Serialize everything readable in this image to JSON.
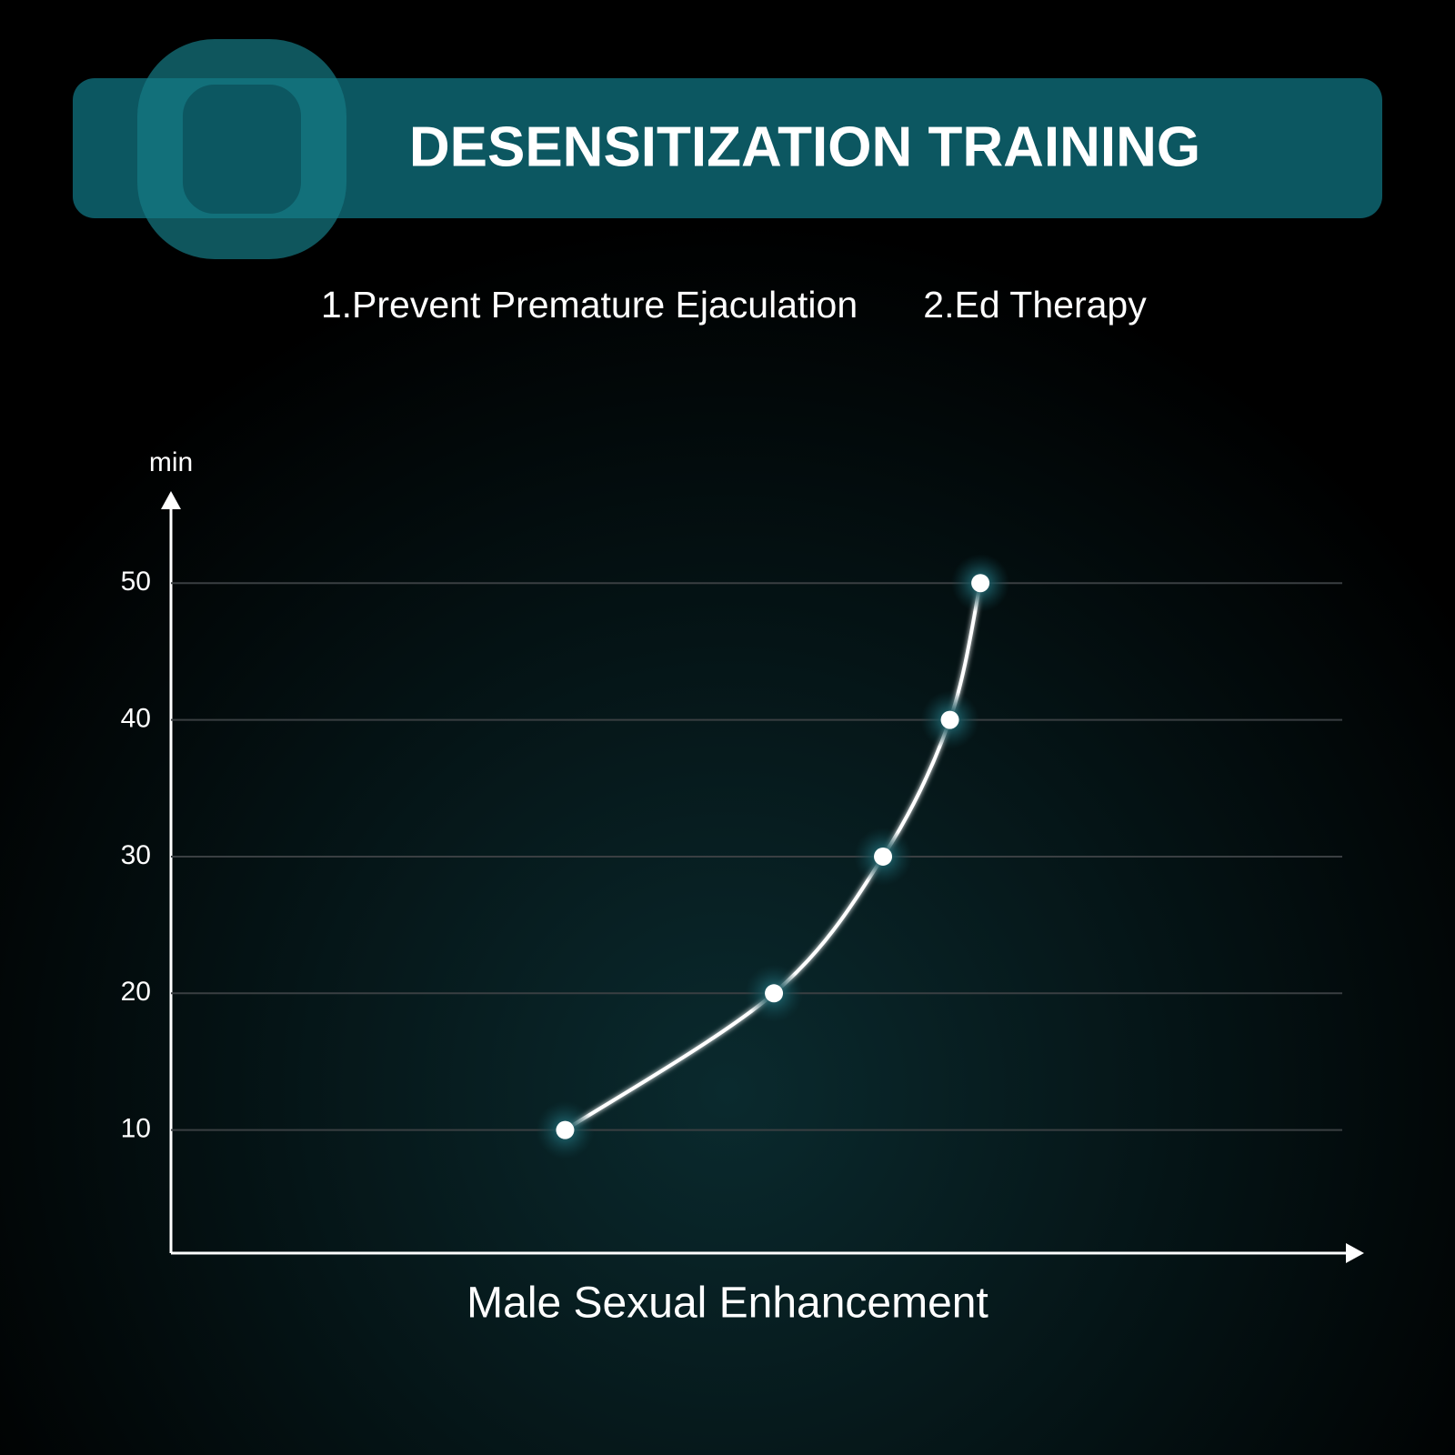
{
  "chart_data": {
    "type": "line",
    "title": "DESENSITIZATION TRAINING",
    "subtitle": [
      "1.Prevent Premature Ejaculation",
      "2.Ed Therapy"
    ],
    "y_label": "min",
    "x_label": "Male Sexual Enhancement",
    "x": [
      33.6,
      51.4,
      60.7,
      66.4,
      69.0
    ],
    "series": [
      {
        "name": null,
        "color": "#ffffff",
        "values": [
          10,
          20,
          30,
          40,
          50
        ]
      }
    ],
    "xlim": [
      0,
      100
    ],
    "ylim": [
      1,
      56
    ],
    "yticks": [
      10,
      20,
      30,
      40,
      50
    ],
    "grid": true
  }
}
